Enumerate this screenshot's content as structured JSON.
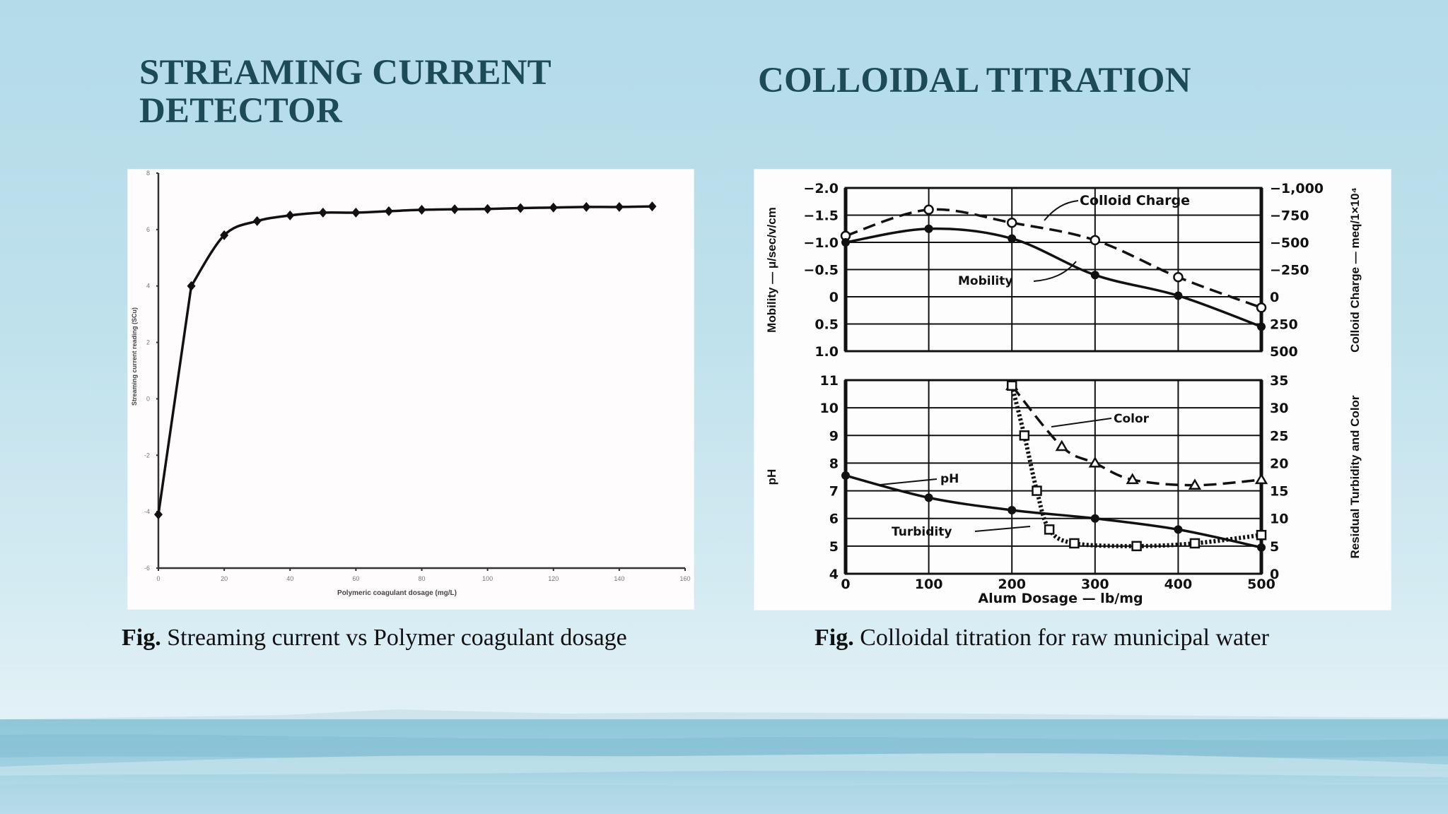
{
  "slide": {
    "left_title": "STREAMING CURRENT DETECTOR",
    "right_title": "COLLOIDAL TITRATION",
    "left_caption": {
      "prefix": "Fig.",
      "text": " Streaming current vs Polymer coagulant dosage"
    },
    "right_caption": {
      "prefix": "Fig.",
      "text": " Colloidal titration for raw municipal water"
    },
    "colors": {
      "title": "#1c4a57",
      "background_top": "#b3dbe9",
      "background_bottom": "#e2f1f6",
      "water": "#7fbfd4",
      "line": "#111111"
    }
  },
  "chart_data": [
    {
      "type": "line",
      "title": "Streaming current vs Polymer coagulant dosage",
      "xlabel": "Polymeric coagulant dosage (mg/L)",
      "ylabel": "Streaming current reading (SCu)",
      "xlim": [
        0,
        160
      ],
      "ylim": [
        -6,
        8
      ],
      "xticks": [
        0,
        20,
        40,
        60,
        80,
        100,
        120,
        140,
        160
      ],
      "yticks": [
        -6,
        -4,
        -2,
        0,
        2,
        4,
        6,
        8
      ],
      "grid": false,
      "legend": null,
      "series": [
        {
          "name": "Streaming current",
          "marker": "diamond",
          "x": [
            0,
            10,
            20,
            30,
            40,
            50,
            60,
            70,
            80,
            90,
            100,
            110,
            120,
            130,
            140,
            150
          ],
          "y": [
            -4.1,
            4.0,
            5.8,
            6.3,
            6.5,
            6.6,
            6.6,
            6.65,
            6.7,
            6.72,
            6.73,
            6.76,
            6.78,
            6.8,
            6.8,
            6.82
          ]
        }
      ]
    },
    {
      "type": "line",
      "title": "Colloidal titration for raw municipal water",
      "panels": [
        {
          "name": "top",
          "xlabel": "",
          "ylabel_left": "Mobility — μ/sec/v/cm",
          "ylabel_right": "Colloid Charge — meq/1×10⁴",
          "xlim": [
            0,
            500
          ],
          "ylim_left": [
            1.0,
            -2.0
          ],
          "yticks_left": [
            "−2.0",
            "−1.5",
            "−1.0",
            "−0.5",
            "0",
            "0.5",
            "1.0"
          ],
          "yticks_right": [
            "−1,000",
            "−750",
            "−500",
            "−250",
            "0",
            "250",
            "500"
          ],
          "grid": true,
          "annotations": [
            "Colloid Charge",
            "Mobility"
          ],
          "series": [
            {
              "name": "Colloid Charge",
              "style": "dashed",
              "marker": "open-circle",
              "axis": "right",
              "x": [
                0,
                100,
                200,
                300,
                400,
                500
              ],
              "y": [
                -560,
                -800,
                -680,
                -520,
                -180,
                100
              ]
            },
            {
              "name": "Mobility",
              "style": "solid",
              "marker": "filled-circle",
              "axis": "left",
              "x": [
                0,
                100,
                200,
                300,
                400,
                500
              ],
              "y": [
                -1.0,
                -1.25,
                -1.07,
                -0.4,
                -0.02,
                0.55
              ]
            }
          ]
        },
        {
          "name": "bottom",
          "xlabel": "Alum Dosage — lb/mg",
          "ylabel_left": "pH",
          "ylabel_right": "Residual Turbidity and Color",
          "xlim": [
            0,
            500
          ],
          "xticks": [
            0,
            100,
            200,
            300,
            400,
            500
          ],
          "ylim_left": [
            4,
            11
          ],
          "ylim_right": [
            0,
            35
          ],
          "yticks_left": [
            4,
            5,
            6,
            7,
            8,
            9,
            10,
            11
          ],
          "yticks_right": [
            0,
            5,
            10,
            15,
            20,
            25,
            30,
            35
          ],
          "grid": true,
          "annotations": [
            "Color",
            "pH",
            "Turbidity"
          ],
          "series": [
            {
              "name": "pH",
              "style": "solid",
              "marker": "filled-circle",
              "axis": "left",
              "x": [
                0,
                100,
                200,
                300,
                400,
                500
              ],
              "y": [
                7.55,
                6.75,
                6.3,
                6.0,
                5.6,
                4.95
              ]
            },
            {
              "name": "Color",
              "style": "dashed",
              "marker": "open-triangle",
              "axis": "right",
              "x": [
                200,
                260,
                300,
                345,
                420,
                500
              ],
              "y": [
                34,
                23,
                20,
                17,
                16,
                17
              ]
            },
            {
              "name": "Turbidity",
              "style": "dotted",
              "marker": "open-square",
              "axis": "right",
              "x": [
                200,
                215,
                230,
                245,
                275,
                350,
                420,
                500
              ],
              "y": [
                34,
                25,
                15,
                8,
                5.5,
                5,
                5.5,
                7
              ]
            }
          ]
        }
      ]
    }
  ]
}
